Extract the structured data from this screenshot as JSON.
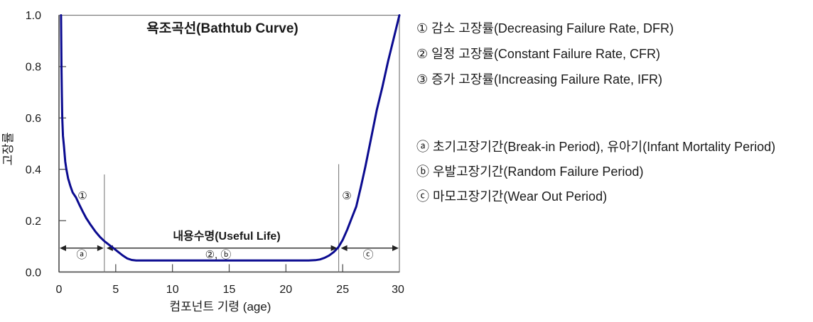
{
  "chart_data": {
    "type": "line",
    "title": "욕조곡선(Bathtub Curve)",
    "xlabel": "컴포넌트 기령 (age)",
    "ylabel": "고장률",
    "xlim": [
      0,
      30
    ],
    "ylim": [
      0.0,
      1.0
    ],
    "grid": false,
    "legend_position": "right-text-block",
    "x_tick_values": [
      0,
      5,
      10,
      15,
      20,
      25,
      30
    ],
    "x_tick_labels": [
      "0",
      "5",
      "10",
      "15",
      "20",
      "25",
      "30"
    ],
    "y_tick_values": [
      0.0,
      0.2,
      0.4,
      0.6,
      0.8,
      1.0
    ],
    "y_tick_labels": [
      "0.0",
      "0.2",
      "0.4",
      "0.6",
      "0.8",
      "1.0"
    ],
    "line_color": "#0b0b90",
    "series": [
      {
        "name": "failure-rate-bathtub-curve",
        "points": [
          [
            0.18,
            1.0
          ],
          [
            0.2,
            0.9
          ],
          [
            0.22,
            0.8
          ],
          [
            0.25,
            0.7
          ],
          [
            0.29,
            0.6
          ],
          [
            0.35,
            0.53
          ],
          [
            0.44,
            0.49
          ],
          [
            0.55,
            0.43
          ],
          [
            0.65,
            0.4
          ],
          [
            0.8,
            0.365
          ],
          [
            1.0,
            0.335
          ],
          [
            1.2,
            0.31
          ],
          [
            1.5,
            0.29
          ],
          [
            1.8,
            0.262
          ],
          [
            2.1,
            0.235
          ],
          [
            2.4,
            0.21
          ],
          [
            2.8,
            0.183
          ],
          [
            3.2,
            0.158
          ],
          [
            3.6,
            0.137
          ],
          [
            4.0,
            0.12
          ],
          [
            4.4,
            0.106
          ],
          [
            4.8,
            0.093
          ],
          [
            5.2,
            0.079
          ],
          [
            5.6,
            0.065
          ],
          [
            6.0,
            0.053
          ],
          [
            6.4,
            0.047
          ],
          [
            6.8,
            0.045
          ],
          [
            8.0,
            0.045
          ],
          [
            10.0,
            0.045
          ],
          [
            12.0,
            0.045
          ],
          [
            14.0,
            0.045
          ],
          [
            16.0,
            0.045
          ],
          [
            18.0,
            0.045
          ],
          [
            20.0,
            0.045
          ],
          [
            22.0,
            0.045
          ],
          [
            22.6,
            0.046
          ],
          [
            23.0,
            0.049
          ],
          [
            23.4,
            0.055
          ],
          [
            23.8,
            0.064
          ],
          [
            24.2,
            0.077
          ],
          [
            24.6,
            0.095
          ],
          [
            25.0,
            0.125
          ],
          [
            25.4,
            0.165
          ],
          [
            25.8,
            0.21
          ],
          [
            26.2,
            0.255
          ],
          [
            26.6,
            0.33
          ],
          [
            27.0,
            0.41
          ],
          [
            27.5,
            0.52
          ],
          [
            28.0,
            0.63
          ],
          [
            28.5,
            0.72
          ],
          [
            29.0,
            0.82
          ],
          [
            29.5,
            0.91
          ],
          [
            30.0,
            1.0
          ]
        ]
      }
    ],
    "marker_lines": [
      {
        "x": 4.0,
        "y_top": 0.38
      },
      {
        "x": 24.65,
        "y_top": 0.42
      }
    ],
    "annotation_arrow_y": 0.093,
    "annotations": {
      "decreasing_label": "①",
      "increasing_label": "③",
      "useful_life_label": "내용수명(Useful Life)",
      "region_a_label": "ⓐ",
      "region_2b_label": "②, ⓑ",
      "region_c_label": "ⓒ"
    }
  },
  "legend": {
    "rate_items": [
      "① 감소 고장률(Decreasing Failure Rate, DFR)",
      "② 일정 고장률(Constant Failure Rate, CFR)",
      "③ 증가 고장률(Increasing Failure Rate, IFR)"
    ],
    "period_items": [
      "ⓐ 초기고장기간(Break-in Period), 유아기(Infant Mortality Period)",
      "ⓑ 우발고장기간(Random Failure Period)",
      "ⓒ 마모고장기간(Wear Out Period)"
    ]
  }
}
